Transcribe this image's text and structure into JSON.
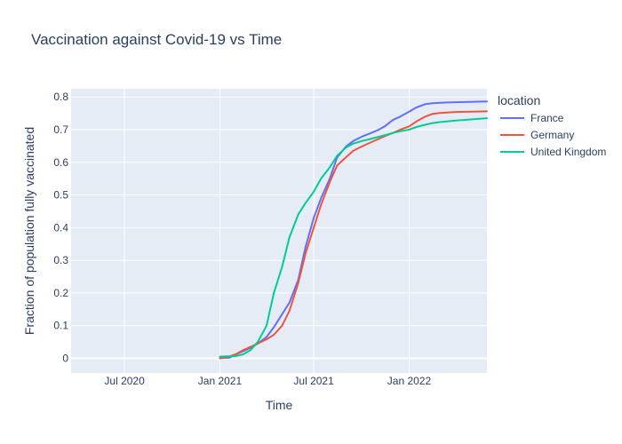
{
  "chart_data": {
    "type": "line",
    "title": "Vaccination against Covid-19 vs Time",
    "xlabel": "Time",
    "ylabel": "Fraction of population fully vaccinated",
    "xlim": [
      "2020-03-20",
      "2022-05-31"
    ],
    "ylim": [
      -0.045,
      0.825
    ],
    "grid": true,
    "legend": {
      "title": "location",
      "placement": "right"
    },
    "x_ticks": [
      {
        "date": "2020-07-01",
        "label": "Jul 2020"
      },
      {
        "date": "2021-01-01",
        "label": "Jan 2021"
      },
      {
        "date": "2021-07-01",
        "label": "Jul 2021"
      },
      {
        "date": "2022-01-01",
        "label": "Jan 2022"
      }
    ],
    "y_ticks": [
      0,
      0.1,
      0.2,
      0.3,
      0.4,
      0.5,
      0.6,
      0.7,
      0.8
    ],
    "y_tick_labels": [
      "0",
      "0.1",
      "0.2",
      "0.3",
      "0.4",
      "0.5",
      "0.6",
      "0.7",
      "0.8"
    ],
    "series": [
      {
        "name": "France",
        "color": "#636efa",
        "points": [
          [
            "2021-01-01",
            0.0
          ],
          [
            "2021-01-20",
            0.002
          ],
          [
            "2021-02-01",
            0.012
          ],
          [
            "2021-02-15",
            0.022
          ],
          [
            "2021-03-01",
            0.032
          ],
          [
            "2021-03-15",
            0.045
          ],
          [
            "2021-04-01",
            0.065
          ],
          [
            "2021-04-15",
            0.095
          ],
          [
            "2021-05-01",
            0.135
          ],
          [
            "2021-05-15",
            0.17
          ],
          [
            "2021-06-01",
            0.24
          ],
          [
            "2021-06-15",
            0.34
          ],
          [
            "2021-07-01",
            0.43
          ],
          [
            "2021-07-15",
            0.49
          ],
          [
            "2021-08-01",
            0.55
          ],
          [
            "2021-08-15",
            0.615
          ],
          [
            "2021-09-01",
            0.648
          ],
          [
            "2021-09-15",
            0.665
          ],
          [
            "2021-10-01",
            0.678
          ],
          [
            "2021-10-15",
            0.687
          ],
          [
            "2021-11-01",
            0.698
          ],
          [
            "2021-11-15",
            0.71
          ],
          [
            "2021-12-01",
            0.73
          ],
          [
            "2021-12-15",
            0.74
          ],
          [
            "2022-01-01",
            0.755
          ],
          [
            "2022-01-15",
            0.768
          ],
          [
            "2022-02-01",
            0.778
          ],
          [
            "2022-02-15",
            0.781
          ],
          [
            "2022-03-15",
            0.783
          ],
          [
            "2022-05-31",
            0.786
          ]
        ]
      },
      {
        "name": "Germany",
        "color": "#ef553b",
        "points": [
          [
            "2021-01-01",
            0.0
          ],
          [
            "2021-01-15",
            0.003
          ],
          [
            "2021-02-01",
            0.013
          ],
          [
            "2021-02-15",
            0.025
          ],
          [
            "2021-03-01",
            0.035
          ],
          [
            "2021-03-15",
            0.045
          ],
          [
            "2021-04-01",
            0.058
          ],
          [
            "2021-04-15",
            0.072
          ],
          [
            "2021-05-01",
            0.1
          ],
          [
            "2021-05-15",
            0.145
          ],
          [
            "2021-06-01",
            0.23
          ],
          [
            "2021-06-15",
            0.32
          ],
          [
            "2021-07-01",
            0.4
          ],
          [
            "2021-07-15",
            0.47
          ],
          [
            "2021-08-01",
            0.54
          ],
          [
            "2021-08-15",
            0.59
          ],
          [
            "2021-09-01",
            0.615
          ],
          [
            "2021-09-15",
            0.635
          ],
          [
            "2021-10-01",
            0.648
          ],
          [
            "2021-10-15",
            0.658
          ],
          [
            "2021-11-01",
            0.67
          ],
          [
            "2021-11-15",
            0.68
          ],
          [
            "2021-12-01",
            0.69
          ],
          [
            "2021-12-15",
            0.7
          ],
          [
            "2022-01-01",
            0.71
          ],
          [
            "2022-01-15",
            0.725
          ],
          [
            "2022-02-01",
            0.74
          ],
          [
            "2022-02-15",
            0.748
          ],
          [
            "2022-03-01",
            0.751
          ],
          [
            "2022-04-01",
            0.754
          ],
          [
            "2022-05-31",
            0.756
          ]
        ]
      },
      {
        "name": "United Kingdom",
        "color": "#00cc96",
        "points": [
          [
            "2021-01-01",
            0.005
          ],
          [
            "2021-01-15",
            0.006
          ],
          [
            "2021-02-01",
            0.007
          ],
          [
            "2021-02-15",
            0.012
          ],
          [
            "2021-03-01",
            0.025
          ],
          [
            "2021-03-15",
            0.05
          ],
          [
            "2021-04-01",
            0.1
          ],
          [
            "2021-04-15",
            0.2
          ],
          [
            "2021-05-01",
            0.28
          ],
          [
            "2021-05-15",
            0.37
          ],
          [
            "2021-06-01",
            0.44
          ],
          [
            "2021-06-15",
            0.475
          ],
          [
            "2021-07-01",
            0.51
          ],
          [
            "2021-07-15",
            0.55
          ],
          [
            "2021-08-01",
            0.585
          ],
          [
            "2021-08-15",
            0.62
          ],
          [
            "2021-09-01",
            0.645
          ],
          [
            "2021-09-15",
            0.657
          ],
          [
            "2021-10-01",
            0.665
          ],
          [
            "2021-10-15",
            0.67
          ],
          [
            "2021-11-01",
            0.677
          ],
          [
            "2021-11-15",
            0.683
          ],
          [
            "2021-12-01",
            0.69
          ],
          [
            "2021-12-15",
            0.695
          ],
          [
            "2022-01-01",
            0.7
          ],
          [
            "2022-01-15",
            0.708
          ],
          [
            "2022-02-01",
            0.715
          ],
          [
            "2022-02-15",
            0.72
          ],
          [
            "2022-03-01",
            0.723
          ],
          [
            "2022-04-01",
            0.728
          ],
          [
            "2022-05-31",
            0.735
          ]
        ]
      }
    ]
  }
}
